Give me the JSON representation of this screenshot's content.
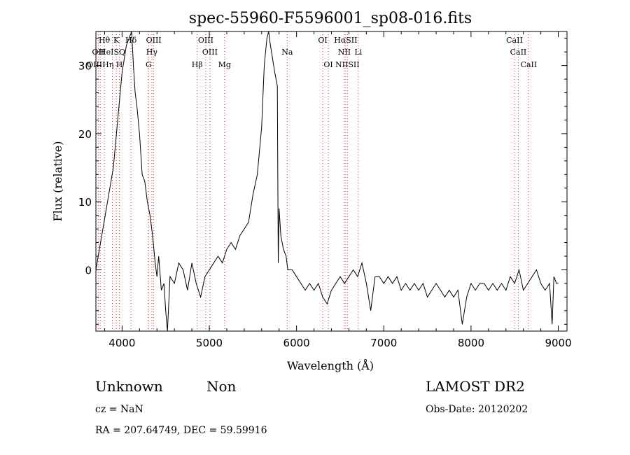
{
  "chart_data": {
    "type": "line",
    "title": "spec-55960-F5596001_sp08-016.fits",
    "xlabel": "Wavelength (Å)",
    "ylabel": "Flux (relative)",
    "xlim": [
      3700,
      9100
    ],
    "ylim": [
      -9,
      35
    ],
    "x_ticks": [
      4000,
      5000,
      6000,
      7000,
      8000,
      9000
    ],
    "y_ticks": [
      0,
      10,
      20,
      30
    ],
    "series": [
      {
        "values": [
          [
            3700,
            0
          ],
          [
            3900,
            15
          ],
          [
            4000,
            29
          ],
          [
            4050,
            33
          ],
          [
            4080,
            34
          ],
          [
            4110,
            35
          ],
          [
            4130,
            30
          ],
          [
            4150,
            26
          ],
          [
            4170,
            24
          ],
          [
            4200,
            20
          ],
          [
            4230,
            14
          ],
          [
            4260,
            13
          ],
          [
            4290,
            10
          ],
          [
            4320,
            8
          ],
          [
            4350,
            5
          ],
          [
            4380,
            1
          ],
          [
            4400,
            -1
          ],
          [
            4420,
            2
          ],
          [
            4450,
            -3
          ],
          [
            4480,
            -2
          ],
          [
            4500,
            -6
          ],
          [
            4520,
            -9
          ],
          [
            4550,
            -1
          ],
          [
            4600,
            -2
          ],
          [
            4650,
            1
          ],
          [
            4700,
            0
          ],
          [
            4750,
            -3
          ],
          [
            4800,
            1
          ],
          [
            4850,
            -2
          ],
          [
            4900,
            -4
          ],
          [
            4950,
            -1
          ],
          [
            5000,
            0
          ],
          [
            5050,
            1
          ],
          [
            5100,
            2
          ],
          [
            5150,
            1
          ],
          [
            5200,
            3
          ],
          [
            5250,
            4
          ],
          [
            5300,
            3
          ],
          [
            5350,
            5
          ],
          [
            5400,
            6
          ],
          [
            5450,
            7
          ],
          [
            5500,
            11
          ],
          [
            5550,
            14
          ],
          [
            5600,
            21
          ],
          [
            5630,
            30
          ],
          [
            5660,
            34
          ],
          [
            5680,
            35
          ],
          [
            5700,
            33
          ],
          [
            5750,
            29
          ],
          [
            5780,
            27
          ],
          [
            5790,
            1
          ],
          [
            5800,
            9
          ],
          [
            5820,
            5
          ],
          [
            5850,
            3
          ],
          [
            5880,
            2
          ],
          [
            5900,
            0
          ],
          [
            5950,
            0
          ],
          [
            6000,
            -1
          ],
          [
            6050,
            -2
          ],
          [
            6100,
            -3
          ],
          [
            6150,
            -2
          ],
          [
            6200,
            -3
          ],
          [
            6250,
            -2
          ],
          [
            6300,
            -4
          ],
          [
            6350,
            -5
          ],
          [
            6400,
            -3
          ],
          [
            6450,
            -2
          ],
          [
            6500,
            -1
          ],
          [
            6550,
            -2
          ],
          [
            6600,
            -1
          ],
          [
            6650,
            0
          ],
          [
            6700,
            -1
          ],
          [
            6750,
            1
          ],
          [
            6800,
            -2
          ],
          [
            6850,
            -6
          ],
          [
            6900,
            -1
          ],
          [
            6950,
            -1
          ],
          [
            7000,
            -2
          ],
          [
            7050,
            -1
          ],
          [
            7100,
            -2
          ],
          [
            7150,
            -1
          ],
          [
            7200,
            -3
          ],
          [
            7250,
            -2
          ],
          [
            7300,
            -3
          ],
          [
            7350,
            -2
          ],
          [
            7400,
            -3
          ],
          [
            7450,
            -2
          ],
          [
            7500,
            -4
          ],
          [
            7550,
            -3
          ],
          [
            7600,
            -2
          ],
          [
            7650,
            -3
          ],
          [
            7700,
            -4
          ],
          [
            7750,
            -3
          ],
          [
            7800,
            -4
          ],
          [
            7850,
            -3
          ],
          [
            7900,
            -8
          ],
          [
            7950,
            -4
          ],
          [
            8000,
            -2
          ],
          [
            8050,
            -3
          ],
          [
            8100,
            -2
          ],
          [
            8150,
            -2
          ],
          [
            8200,
            -3
          ],
          [
            8250,
            -2
          ],
          [
            8300,
            -3
          ],
          [
            8350,
            -2
          ],
          [
            8400,
            -3
          ],
          [
            8450,
            -1
          ],
          [
            8500,
            -2
          ],
          [
            8550,
            0
          ],
          [
            8600,
            -3
          ],
          [
            8650,
            -2
          ],
          [
            8700,
            -1
          ],
          [
            8750,
            0
          ],
          [
            8800,
            -2
          ],
          [
            8850,
            -3
          ],
          [
            8900,
            -2
          ],
          [
            8930,
            -8
          ],
          [
            8950,
            -1
          ],
          [
            8980,
            -2
          ],
          [
            9000,
            -2
          ]
        ]
      }
    ],
    "lines": [
      {
        "label": "Hθ",
        "x": 3797,
        "row": 1
      },
      {
        "label": "K",
        "x": 3934,
        "row": 1
      },
      {
        "label": "Hδ",
        "x": 4102,
        "row": 1
      },
      {
        "label": "OIII",
        "x": 4363,
        "row": 1
      },
      {
        "label": "OIII",
        "x": 4959,
        "row": 1
      },
      {
        "label": "OI",
        "x": 6300,
        "row": 1
      },
      {
        "label": "HαSII",
        "x": 6563,
        "row": 1
      },
      {
        "label": "CaII",
        "x": 8498,
        "row": 1
      },
      {
        "label": "OII",
        "x": 3727,
        "row": 2
      },
      {
        "label": "HeISQ",
        "x": 3889,
        "row": 2
      },
      {
        "label": "Hγ",
        "x": 4341,
        "row": 2
      },
      {
        "label": "OIII",
        "x": 5007,
        "row": 2
      },
      {
        "label": "Na",
        "x": 5893,
        "row": 2
      },
      {
        "label": "NII",
        "x": 6548,
        "row": 2
      },
      {
        "label": "Li",
        "x": 6708,
        "row": 2
      },
      {
        "label": "CaII",
        "x": 8542,
        "row": 2
      },
      {
        "label": "OIIIHη",
        "x": 3750,
        "row": 3
      },
      {
        "label": "H",
        "x": 3969,
        "row": 3
      },
      {
        "label": "G",
        "x": 4305,
        "row": 3
      },
      {
        "label": "Hβ",
        "x": 4861,
        "row": 3
      },
      {
        "label": "Mg",
        "x": 5175,
        "row": 3
      },
      {
        "label": "OI",
        "x": 6364,
        "row": 3
      },
      {
        "label": "NIISII",
        "x": 6583,
        "row": 3
      },
      {
        "label": "CaII",
        "x": 8662,
        "row": 3
      }
    ]
  },
  "footer": {
    "class_text": "Unknown",
    "subclass_text": "Non",
    "survey": "LAMOST DR2",
    "cz": "cz = NaN",
    "obs_date": "Obs-Date: 20120202",
    "coords": "RA = 207.64749, DEC =  59.59916"
  },
  "colors": {
    "line_marker": "#cc3333",
    "spectrum": "#000000"
  }
}
